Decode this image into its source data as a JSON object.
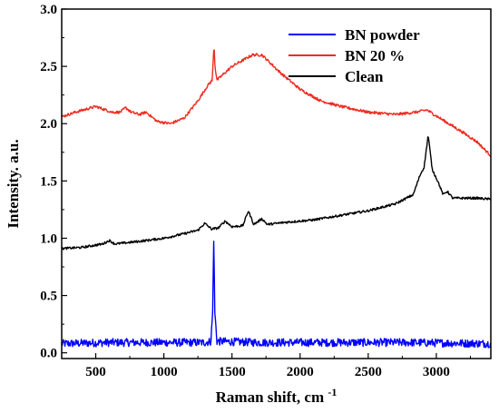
{
  "chart_data": {
    "type": "line",
    "xlabel": "Raman shift, cm",
    "xlabel_sup": "-1",
    "ylabel": "Intensity. a.u.",
    "xlim": [
      250,
      3400
    ],
    "ylim": [
      -0.05,
      3.0
    ],
    "xticks": [
      500,
      1000,
      1500,
      2000,
      2500,
      3000
    ],
    "yticks": [
      0.0,
      0.5,
      1.0,
      1.5,
      2.0,
      2.5,
      3.0
    ],
    "xtick_labels": [
      "500",
      "1000",
      "1500",
      "2000",
      "2500",
      "3000"
    ],
    "ytick_labels": [
      "0.0",
      "0.5",
      "1.0",
      "1.5",
      "2.0",
      "2.5",
      "3.0"
    ],
    "grid": false,
    "legend_position": "top-right",
    "series": [
      {
        "name": "BN powder",
        "color": "#0000ff",
        "noise": 0.035,
        "points": [
          [
            250,
            0.08
          ],
          [
            600,
            0.09
          ],
          [
            1000,
            0.09
          ],
          [
            1300,
            0.09
          ],
          [
            1345,
            0.1
          ],
          [
            1358,
            0.35
          ],
          [
            1366,
            1.0
          ],
          [
            1374,
            0.35
          ],
          [
            1390,
            0.1
          ],
          [
            1700,
            0.09
          ],
          [
            2200,
            0.09
          ],
          [
            2800,
            0.09
          ],
          [
            3400,
            0.08
          ]
        ]
      },
      {
        "name": "BN 20 %",
        "color": "#ee2b1f",
        "noise": 0.012,
        "points": [
          [
            250,
            2.06
          ],
          [
            350,
            2.1
          ],
          [
            500,
            2.15
          ],
          [
            620,
            2.1
          ],
          [
            680,
            2.1
          ],
          [
            720,
            2.14
          ],
          [
            760,
            2.1
          ],
          [
            820,
            2.08
          ],
          [
            870,
            2.1
          ],
          [
            950,
            2.02
          ],
          [
            1050,
            2.0
          ],
          [
            1150,
            2.05
          ],
          [
            1250,
            2.2
          ],
          [
            1320,
            2.33
          ],
          [
            1355,
            2.38
          ],
          [
            1362,
            2.55
          ],
          [
            1368,
            2.7
          ],
          [
            1375,
            2.5
          ],
          [
            1390,
            2.38
          ],
          [
            1500,
            2.5
          ],
          [
            1650,
            2.6
          ],
          [
            1720,
            2.6
          ],
          [
            1850,
            2.45
          ],
          [
            2000,
            2.3
          ],
          [
            2150,
            2.2
          ],
          [
            2300,
            2.15
          ],
          [
            2500,
            2.1
          ],
          [
            2700,
            2.08
          ],
          [
            2850,
            2.1
          ],
          [
            2930,
            2.12
          ],
          [
            3050,
            2.03
          ],
          [
            3200,
            1.92
          ],
          [
            3300,
            1.84
          ],
          [
            3400,
            1.72
          ]
        ]
      },
      {
        "name": "Clean",
        "color": "#000000",
        "noise": 0.01,
        "points": [
          [
            250,
            0.91
          ],
          [
            400,
            0.92
          ],
          [
            550,
            0.95
          ],
          [
            600,
            0.98
          ],
          [
            640,
            0.95
          ],
          [
            800,
            0.97
          ],
          [
            1000,
            1.0
          ],
          [
            1150,
            1.04
          ],
          [
            1250,
            1.07
          ],
          [
            1300,
            1.13
          ],
          [
            1350,
            1.08
          ],
          [
            1400,
            1.09
          ],
          [
            1450,
            1.15
          ],
          [
            1500,
            1.1
          ],
          [
            1580,
            1.11
          ],
          [
            1620,
            1.24
          ],
          [
            1660,
            1.12
          ],
          [
            1720,
            1.17
          ],
          [
            1760,
            1.12
          ],
          [
            1900,
            1.14
          ],
          [
            2100,
            1.16
          ],
          [
            2300,
            1.2
          ],
          [
            2500,
            1.24
          ],
          [
            2700,
            1.3
          ],
          [
            2830,
            1.38
          ],
          [
            2880,
            1.55
          ],
          [
            2910,
            1.62
          ],
          [
            2940,
            1.9
          ],
          [
            2970,
            1.6
          ],
          [
            3010,
            1.5
          ],
          [
            3050,
            1.38
          ],
          [
            3080,
            1.41
          ],
          [
            3120,
            1.35
          ],
          [
            3200,
            1.35
          ],
          [
            3300,
            1.35
          ],
          [
            3400,
            1.34
          ]
        ]
      }
    ]
  }
}
